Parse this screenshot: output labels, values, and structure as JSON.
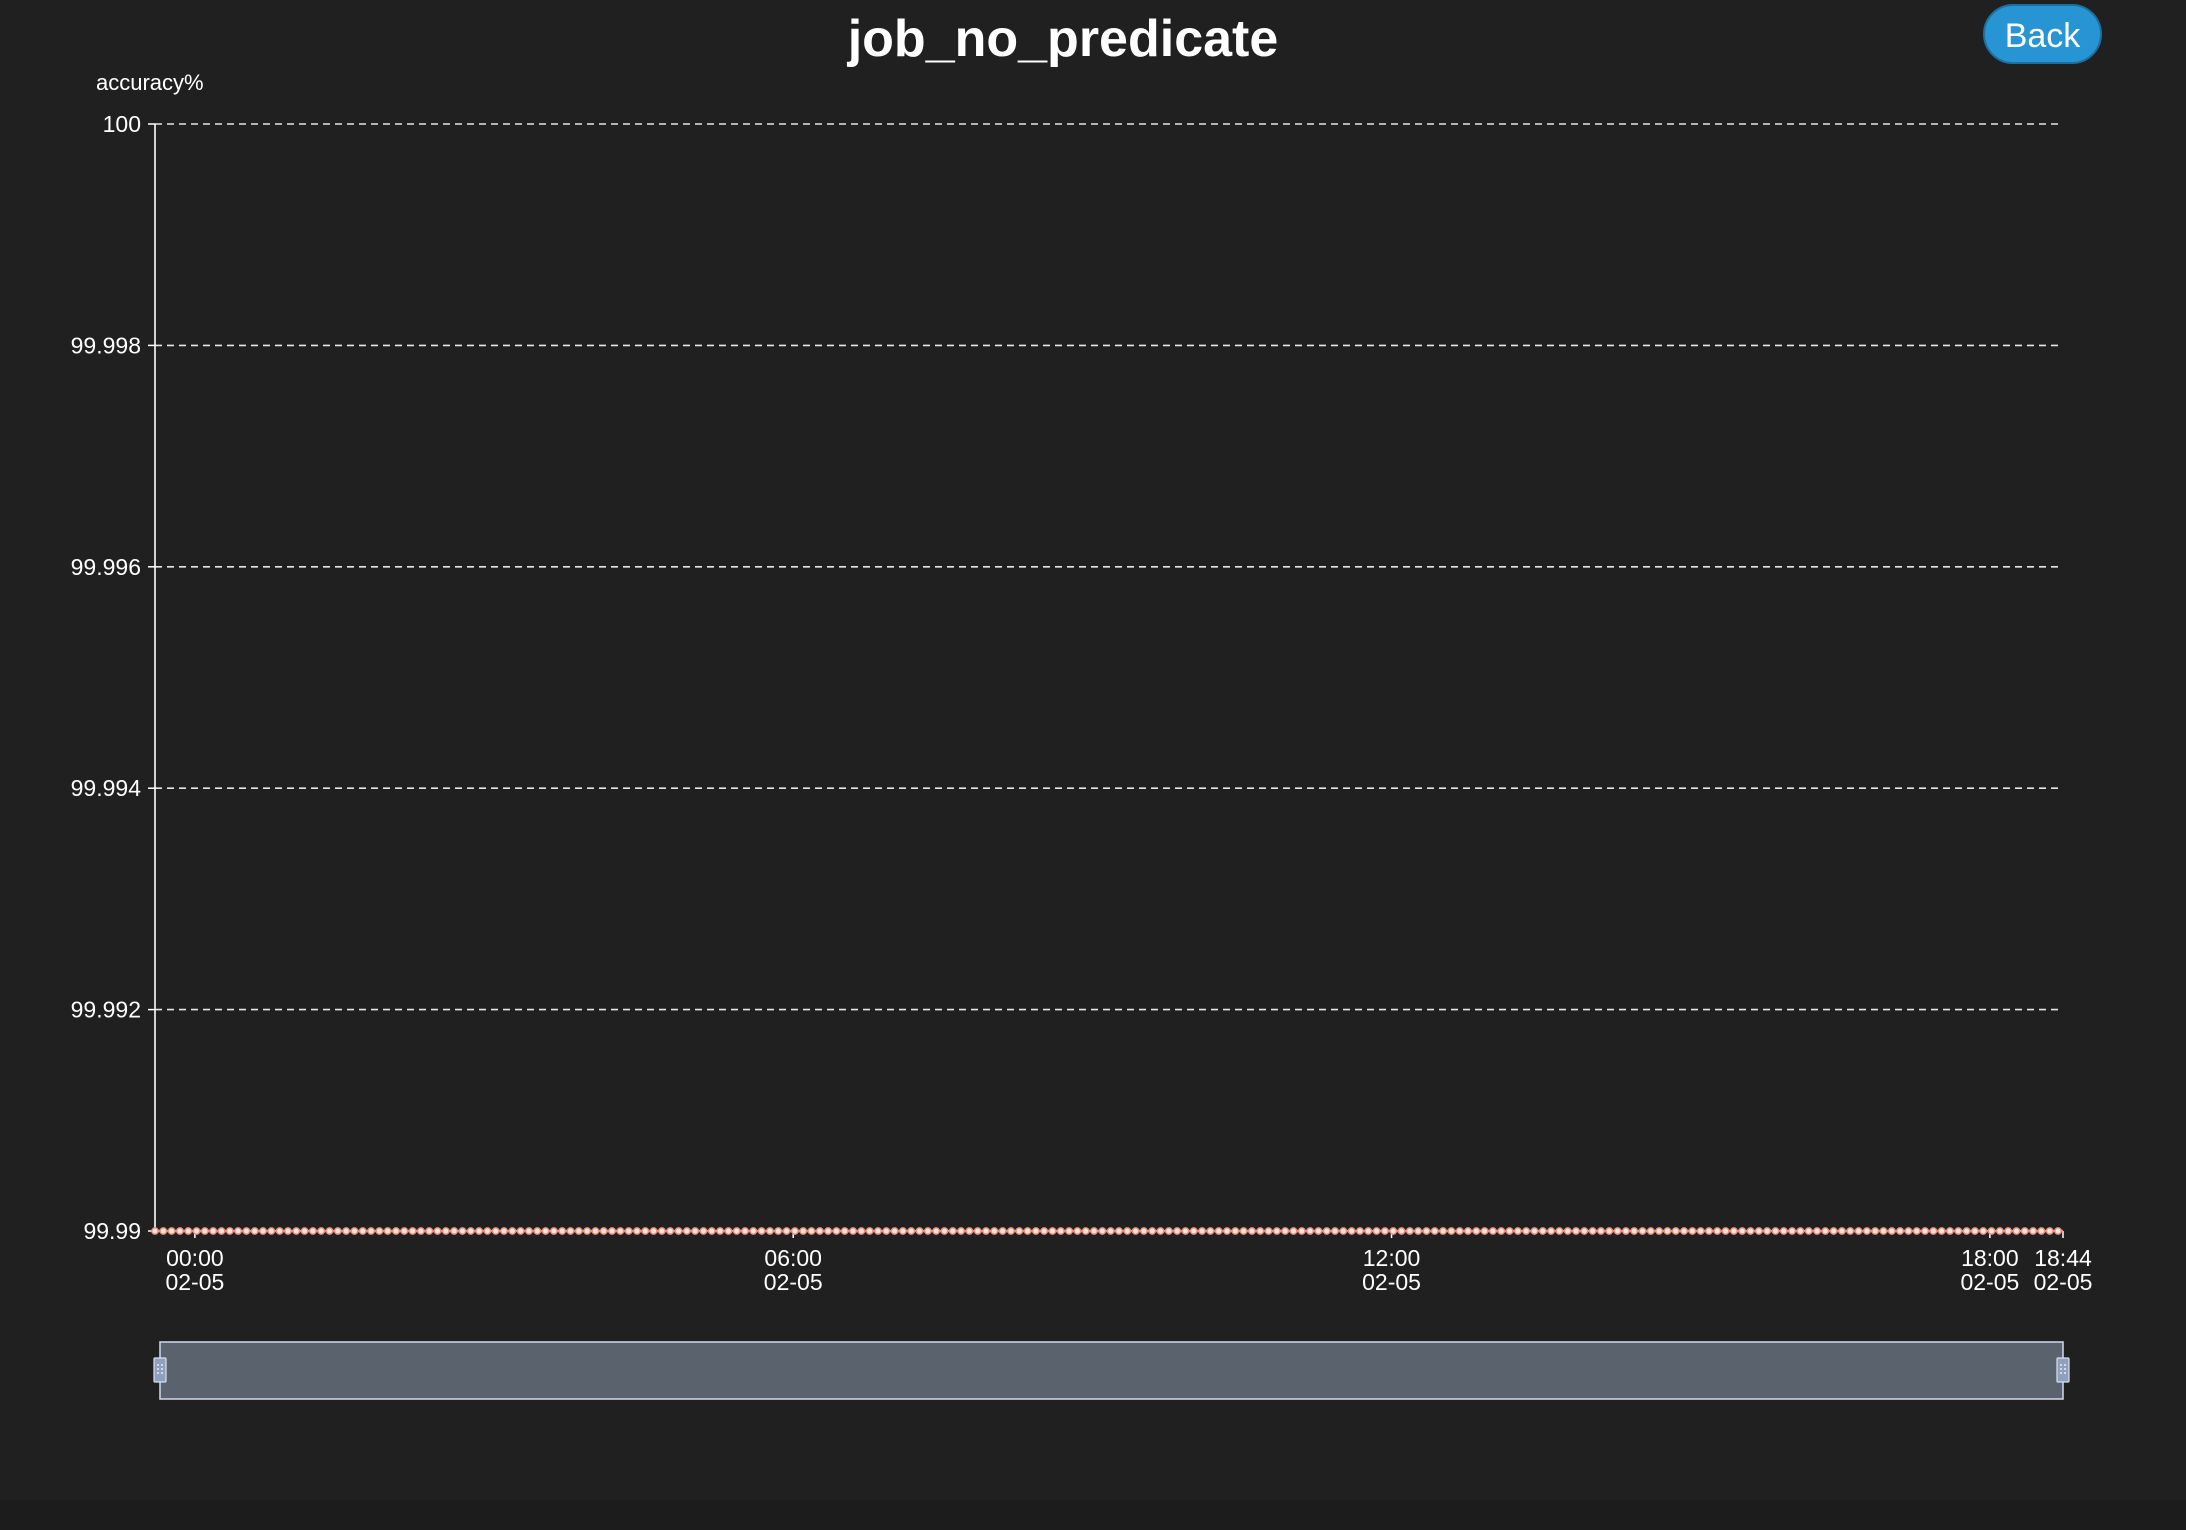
{
  "page": {
    "title": "job_no_predicate",
    "back_label": "Back"
  },
  "colors": {
    "background": "#202020",
    "grid": "#e6e6e6",
    "series": "#e8907c",
    "accent": "#2795d4",
    "zoom_fill": "#5a626e"
  },
  "chart_data": {
    "type": "line",
    "ylabel": "accuracy%",
    "y_ticks": [
      "100",
      "99.998",
      "99.996",
      "99.994",
      "99.992",
      "99.99"
    ],
    "ylim": [
      99.99,
      100
    ],
    "x_ticks": [
      {
        "time": "00:00",
        "date": "02-05"
      },
      {
        "time": "06:00",
        "date": "02-05"
      },
      {
        "time": "12:00",
        "date": "02-05"
      },
      {
        "time": "18:00",
        "date": "02-05"
      },
      {
        "time": "18:44",
        "date": "02-05"
      }
    ],
    "xlim": [
      "02-04 23:36",
      "02-05 18:44"
    ],
    "grid": true,
    "legend": "none",
    "zoom_range": [
      0,
      100
    ],
    "series": [
      {
        "sample_interval_minutes": 5,
        "start": "02-04 23:36",
        "end": "02-05 18:44",
        "value": 99.99
      }
    ]
  }
}
